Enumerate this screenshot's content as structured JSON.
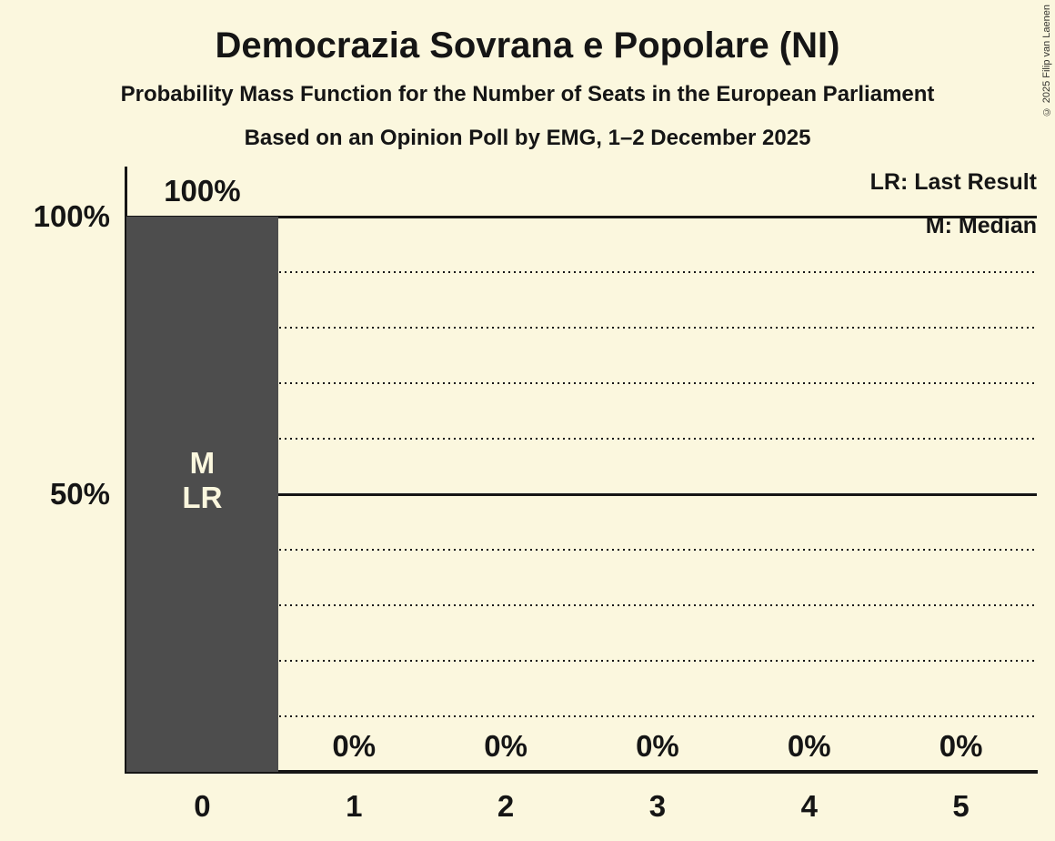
{
  "colors": {
    "background": "#FBF7DE",
    "bar": "#4D4D4D",
    "ink": "#151515",
    "bar_label": "#FBF7DE"
  },
  "copyright": "© 2025 Filip van Laenen",
  "chart_data": {
    "type": "bar",
    "title": "Democrazia Sovrana e Popolare (NI)",
    "subtitle": "Probability Mass Function for the Number of Seats in the European Parliament",
    "note": "Based on an Opinion Poll by EMG, 1–2 December 2025",
    "legend": [
      {
        "abbr": "LR",
        "label": "LR: Last Result"
      },
      {
        "abbr": "M",
        "label": "M: Median"
      }
    ],
    "legend_position": "top-right",
    "xlabel": "",
    "ylabel": "",
    "categories": [
      "0",
      "1",
      "2",
      "3",
      "4",
      "5"
    ],
    "values": [
      100,
      0,
      0,
      0,
      0,
      0
    ],
    "value_labels": [
      "100%",
      "0%",
      "0%",
      "0%",
      "0%",
      "0%"
    ],
    "bar_annotations": [
      [
        "M",
        "LR"
      ],
      [],
      [],
      [],
      [],
      []
    ],
    "y_axis_labels": [
      {
        "pct": 100,
        "label": "100%"
      },
      {
        "pct": 50,
        "label": "50%"
      }
    ],
    "ylim": [
      0,
      100
    ],
    "gridlines": {
      "solid_pct": [
        100,
        50
      ],
      "dotted_pct": [
        90,
        80,
        70,
        60,
        40,
        30,
        20,
        10
      ]
    },
    "median_seats": 0,
    "last_result_seats": 0
  }
}
